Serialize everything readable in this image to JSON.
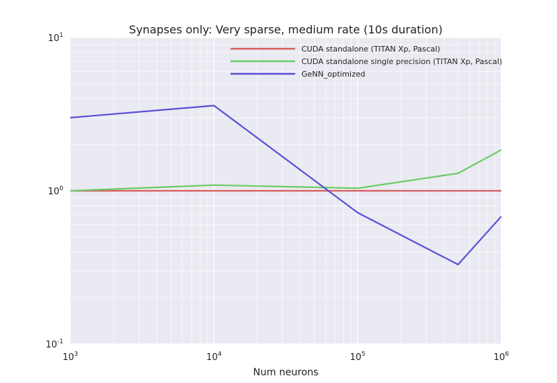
{
  "chart_data": {
    "type": "line",
    "title": "Synapses only: Very sparse, medium rate (10s duration)",
    "xlabel": "Num neurons",
    "ylabel": "",
    "xscale": "log",
    "yscale": "log",
    "xlim": [
      1000,
      1000000
    ],
    "ylim": [
      0.1,
      10
    ],
    "grid": true,
    "legend_position": "top-right",
    "x_ticks": [
      {
        "base": "10",
        "exp": "3",
        "value": 1000
      },
      {
        "base": "10",
        "exp": "4",
        "value": 10000
      },
      {
        "base": "10",
        "exp": "5",
        "value": 100000
      },
      {
        "base": "10",
        "exp": "6",
        "value": 1000000
      }
    ],
    "y_ticks": [
      {
        "base": "10",
        "exp": "-1",
        "value": 0.1
      },
      {
        "base": "10",
        "exp": "0",
        "value": 1
      },
      {
        "base": "10",
        "exp": "1",
        "value": 10
      }
    ],
    "series": [
      {
        "name": "CUDA standalone (TITAN Xp, Pascal)",
        "color": "#d65f5f",
        "x": [
          1000,
          10000,
          100000,
          500000,
          1000000
        ],
        "y": [
          1.0,
          1.0,
          1.0,
          1.0,
          1.0
        ]
      },
      {
        "name": "CUDA standalone single precision (TITAN Xp, Pascal)",
        "color": "#6acc65",
        "x": [
          1000,
          10000,
          100000,
          500000,
          1000000
        ],
        "y": [
          1.0,
          1.09,
          1.04,
          1.3,
          1.85
        ]
      },
      {
        "name": "GeNN_optimized",
        "color": "#5b4fd6",
        "x": [
          1000,
          10000,
          100000,
          500000,
          1000000
        ],
        "y": [
          3.0,
          3.6,
          0.72,
          0.33,
          0.68
        ]
      }
    ]
  }
}
